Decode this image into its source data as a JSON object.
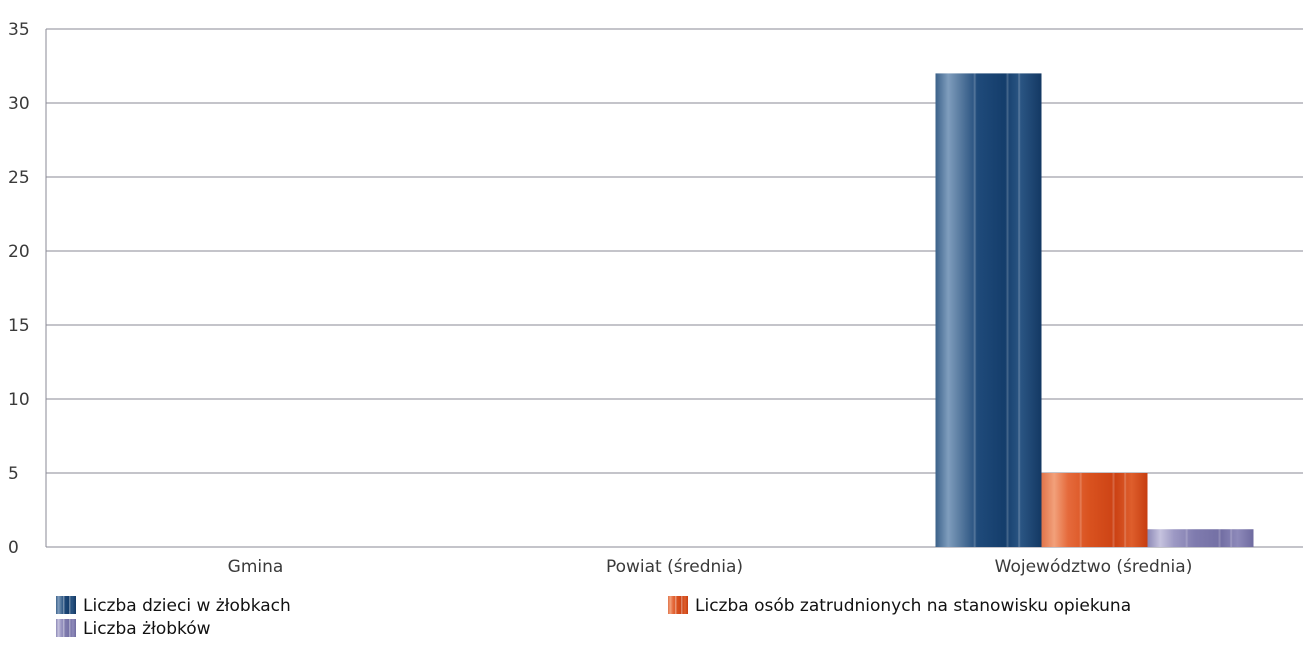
{
  "chart_data": {
    "type": "bar",
    "categories": [
      "Gmina",
      "Powiat (średnia)",
      "Województwo (średnia)"
    ],
    "series": [
      {
        "name": "Liczba dzieci w żłobkach",
        "values": [
          0,
          0,
          32
        ],
        "color": "#1f4a7a"
      },
      {
        "name": "Liczba osób zatrudnionych na stanowisku opiekuna",
        "values": [
          0,
          0,
          5
        ],
        "color": "#d94a1e"
      },
      {
        "name": "Liczba żłobków",
        "values": [
          0,
          0,
          1.2
        ],
        "color": "#8a86b8"
      }
    ],
    "ylim": [
      0,
      35
    ],
    "yticks": [
      0,
      5,
      10,
      15,
      20,
      25,
      30,
      35
    ],
    "grid": true,
    "legend": "bottom"
  }
}
